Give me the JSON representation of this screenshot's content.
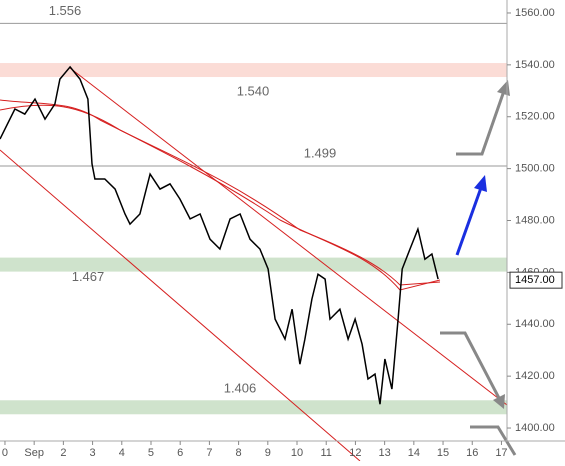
{
  "chart_data": {
    "type": "line",
    "series": [
      {
        "color": "#000000",
        "x": [
          -0.17,
          0.34,
          0.68,
          1.03,
          1.37,
          1.71,
          1.88,
          2.23,
          2.57,
          2.84,
          2.98,
          3.08,
          3.42,
          3.77,
          4.11,
          4.28,
          4.62,
          4.97,
          5.31,
          5.65,
          5.99,
          6.34,
          6.68,
          7.02,
          7.36,
          7.71,
          8.05,
          8.39,
          8.73,
          9.01,
          9.25,
          9.59,
          9.83,
          10.1,
          10.27,
          10.51,
          10.72,
          10.96,
          11.13,
          11.47,
          11.75,
          11.99,
          12.23,
          12.43,
          12.67,
          12.84,
          13.01,
          13.25,
          13.46,
          13.6,
          13.87,
          14.14,
          14.38,
          14.62,
          14.83
        ],
        "values": [
          1511.4,
          1523.0,
          1521.0,
          1526.8,
          1519.1,
          1524.9,
          1534.5,
          1539.2,
          1534.5,
          1526.8,
          1501.8,
          1496.0,
          1496.0,
          1492.1,
          1482.5,
          1478.6,
          1482.5,
          1497.9,
          1492.1,
          1494.1,
          1488.3,
          1480.6,
          1482.5,
          1472.8,
          1469.0,
          1480.6,
          1482.5,
          1472.8,
          1469.0,
          1461.3,
          1442.0,
          1434.3,
          1445.8,
          1424.6,
          1434.3,
          1449.7,
          1459.3,
          1457.4,
          1442.0,
          1445.8,
          1434.3,
          1442.0,
          1432.3,
          1418.9,
          1420.8,
          1409.2,
          1426.6,
          1415.0,
          1442.0,
          1461.3,
          1469.0,
          1476.7,
          1465.1,
          1467.1,
          1457.4
        ]
      }
    ],
    "xlim": [
      -0.17,
      17.19
    ],
    "xticks": [
      {
        "value": 0,
        "label": "0"
      },
      {
        "value": 1,
        "label": "Sep"
      },
      2,
      3,
      4,
      5,
      6,
      7,
      8,
      9,
      10,
      11,
      12,
      13,
      14,
      15,
      16,
      17
    ],
    "xtick_labels_override": null,
    "ylim": [
      1395,
      1565
    ],
    "yticks": [
      {
        "value": 1400,
        "label": "1400.00"
      },
      {
        "value": 1420,
        "label": "1420.00"
      },
      {
        "value": 1440,
        "label": "1440.00"
      },
      {
        "value": 1460,
        "label": "1460.00"
      },
      {
        "value": 1480,
        "label": "1480.00"
      },
      {
        "value": 1500,
        "label": "1500.00"
      },
      {
        "value": 1520,
        "label": "1520.00"
      },
      {
        "value": 1540,
        "label": "1540.00"
      },
      {
        "value": 1560,
        "label": "1560.00"
      }
    ],
    "levels": [
      {
        "value": 1556,
        "label": "1.556",
        "kind": "line",
        "color": "#999999"
      },
      {
        "value": 1538,
        "label": "1.540",
        "kind": "band",
        "color": "#fbdcd6"
      },
      {
        "value": 1501,
        "label": "1.499",
        "kind": "line",
        "color": "#999999"
      },
      {
        "value": 1463,
        "label": "1.467",
        "kind": "band",
        "color": "#cfe3cc"
      },
      {
        "value": 1408,
        "label": "1.406",
        "kind": "band",
        "color": "#cfe3cc"
      }
    ],
    "last_price": {
      "value": 1457,
      "label": "1457.00"
    }
  }
}
